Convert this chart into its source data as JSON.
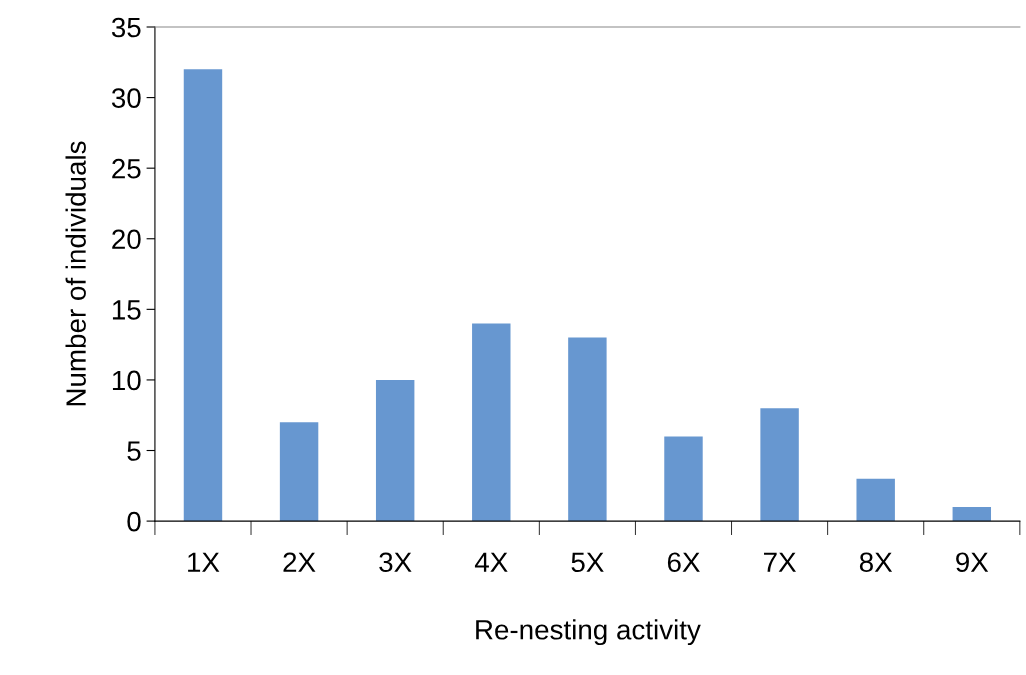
{
  "chart_data": {
    "type": "bar",
    "xlabel": "Re-nesting activity",
    "ylabel": "Number of individuals",
    "categories": [
      "1X",
      "2X",
      "3X",
      "4X",
      "5X",
      "6X",
      "7X",
      "8X",
      "9X"
    ],
    "values": [
      32,
      7,
      10,
      14,
      13,
      6,
      8,
      3,
      1
    ],
    "color": "#6797d0",
    "ylim": [
      0,
      35
    ],
    "yticks": [
      0,
      5,
      10,
      15,
      20,
      25,
      30,
      35
    ],
    "grid": false,
    "legend": false
  }
}
